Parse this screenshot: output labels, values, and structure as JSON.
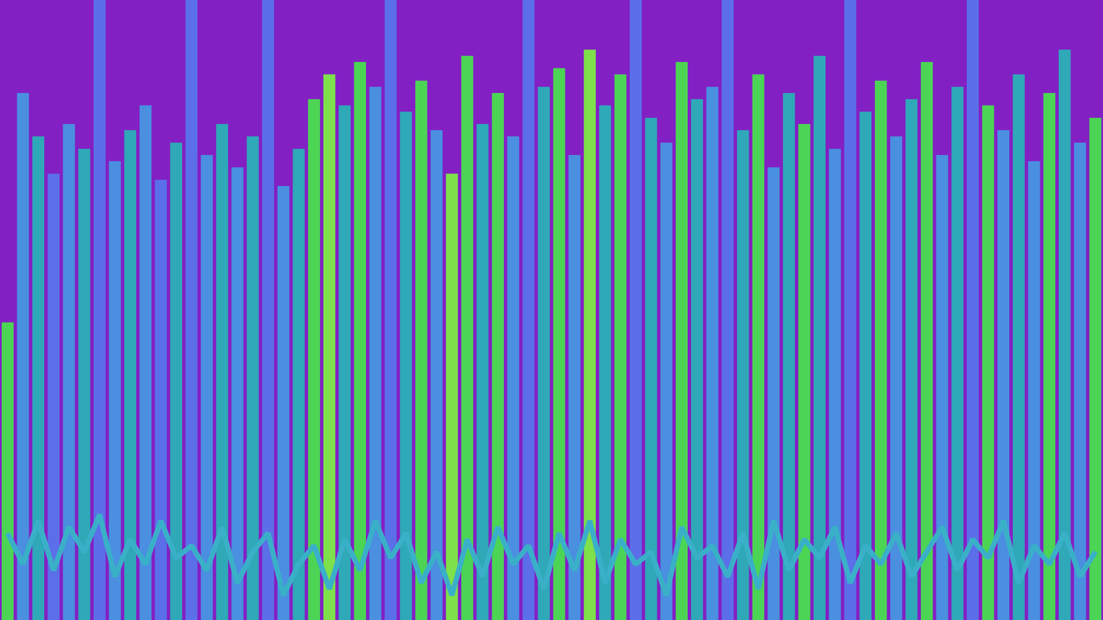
{
  "chart_data": {
    "type": "bar",
    "categories": [
      null,
      null,
      null,
      null,
      null,
      null,
      null,
      null,
      null,
      null,
      null,
      null,
      null,
      null,
      null,
      null,
      null,
      null,
      null,
      null,
      null,
      null,
      null,
      null,
      null,
      null,
      null,
      null,
      null,
      null,
      null,
      null,
      null,
      null,
      null,
      null,
      null,
      null,
      null,
      null,
      null,
      null,
      null,
      null,
      null,
      null,
      null,
      null,
      null,
      null,
      null,
      null,
      null,
      null,
      null,
      null,
      null,
      null,
      null,
      null,
      null,
      null,
      null,
      null,
      null,
      null,
      null,
      null,
      null,
      null,
      null,
      null
    ],
    "series": [
      {
        "type": "bar",
        "values": [
          48,
          85,
          78,
          72,
          80,
          76,
          100,
          74,
          79,
          83,
          71,
          77,
          100,
          75,
          80,
          73,
          78,
          100,
          70,
          76,
          84,
          88,
          83,
          90,
          86,
          100,
          82,
          87,
          79,
          72,
          91,
          80,
          85,
          78,
          100,
          86,
          89,
          75,
          92,
          83,
          88,
          100,
          81,
          77,
          90,
          84,
          86,
          100,
          79,
          88,
          73,
          85,
          80,
          91,
          76,
          100,
          82,
          87,
          78,
          84,
          90,
          75,
          86,
          100,
          83,
          79,
          88,
          74,
          85,
          92,
          77,
          81
        ],
        "colors": [
          "#4cd455",
          "#4a8fe0",
          "#2fa8b8",
          "#5b6fe8",
          "#4a8fe0",
          "#2fa8b8",
          "#5b6fe8",
          "#4a8fe0",
          "#2fa8b8",
          "#4a8fe0",
          "#5b6fe8",
          "#2fa8b8",
          "#5b6fe8",
          "#4a8fe0",
          "#2fa8b8",
          "#4a8fe0",
          "#2fa8b8",
          "#5b6fe8",
          "#4a8fe0",
          "#2fa8b8",
          "#4cd455",
          "#7ee04a",
          "#2fa8b8",
          "#4cd455",
          "#4a8fe0",
          "#5b6fe8",
          "#2fa8b8",
          "#4cd455",
          "#4a8fe0",
          "#7ee04a",
          "#4cd455",
          "#2fa8b8",
          "#4cd455",
          "#4a8fe0",
          "#5b6fe8",
          "#2fa8b8",
          "#4cd455",
          "#4a8fe0",
          "#7ee04a",
          "#2fa8b8",
          "#4cd455",
          "#5b6fe8",
          "#2fa8b8",
          "#4a8fe0",
          "#4cd455",
          "#2fa8b8",
          "#4a8fe0",
          "#5b6fe8",
          "#2fa8b8",
          "#4cd455",
          "#4a8fe0",
          "#2fa8b8",
          "#4cd455",
          "#2fa8b8",
          "#4a8fe0",
          "#5b6fe8",
          "#2fa8b8",
          "#4cd455",
          "#4a8fe0",
          "#2fa8b8",
          "#4cd455",
          "#4a8fe0",
          "#2fa8b8",
          "#5b6fe8",
          "#4cd455",
          "#4a8fe0",
          "#2fa8b8",
          "#4a8fe0",
          "#4cd455",
          "#2fa8b8",
          "#4a8fe0",
          "#4cd455"
        ]
      },
      {
        "type": "line",
        "color": "#3ab0c8",
        "values": [
          14,
          9,
          16,
          8,
          15,
          11,
          17,
          7,
          13,
          9,
          16,
          10,
          12,
          8,
          15,
          6,
          11,
          14,
          4,
          9,
          12,
          5,
          13,
          8,
          16,
          10,
          14,
          6,
          11,
          4,
          13,
          7,
          15,
          9,
          12,
          5,
          14,
          8,
          16,
          6,
          13,
          9,
          11,
          4,
          15,
          10,
          12,
          7,
          14,
          5,
          16,
          8,
          13,
          10,
          15,
          6,
          12,
          9,
          14,
          7,
          11,
          15,
          8,
          13,
          10,
          16,
          6,
          12,
          9,
          14,
          7,
          11
        ]
      }
    ],
    "ylim": [
      0,
      100
    ],
    "grid": false,
    "tick_labels": false
  }
}
